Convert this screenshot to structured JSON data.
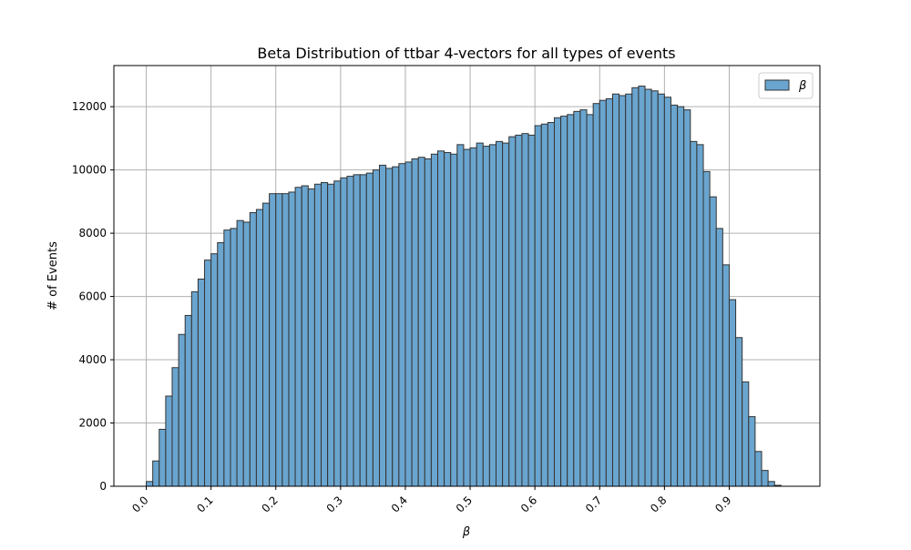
{
  "chart_data": {
    "type": "bar",
    "title": "Beta Distribution of ttbar 4-vectors for all types of events",
    "xlabel": "β",
    "ylabel": "# of Events",
    "xlim": [
      -0.05,
      1.04
    ],
    "ylim": [
      0,
      13300
    ],
    "xticks": [
      0.0,
      0.1,
      0.2,
      0.3,
      0.4,
      0.5,
      0.6,
      0.7,
      0.8,
      0.9
    ],
    "xtick_labels": [
      "0.0",
      "0.1",
      "0.2",
      "0.3",
      "0.4",
      "0.5",
      "0.6",
      "0.7",
      "0.8",
      "0.9"
    ],
    "yticks": [
      0,
      2000,
      4000,
      6000,
      8000,
      10000,
      12000
    ],
    "ytick_labels": [
      "0",
      "2000",
      "4000",
      "6000",
      "8000",
      "10000",
      "12000"
    ],
    "bin_start": 0.0,
    "bin_width": 0.01,
    "grid": true,
    "legend_position": "top-right",
    "bar_color": "#6aa5cf",
    "bar_edge_color": "#333333",
    "series": [
      {
        "name": "β",
        "values": [
          150,
          800,
          1800,
          2850,
          3750,
          4800,
          5400,
          6150,
          6550,
          7150,
          7350,
          7700,
          8100,
          8150,
          8400,
          8350,
          8650,
          8750,
          8950,
          9250,
          9250,
          9250,
          9300,
          9450,
          9500,
          9400,
          9550,
          9600,
          9550,
          9650,
          9750,
          9800,
          9850,
          9850,
          9900,
          10000,
          10150,
          10050,
          10100,
          10200,
          10250,
          10350,
          10400,
          10350,
          10500,
          10600,
          10550,
          10500,
          10800,
          10650,
          10700,
          10850,
          10750,
          10800,
          10900,
          10850,
          11050,
          11100,
          11150,
          11100,
          11400,
          11450,
          11500,
          11650,
          11700,
          11750,
          11850,
          11900,
          11750,
          12100,
          12200,
          12250,
          12400,
          12350,
          12400,
          12600,
          12650,
          12550,
          12500,
          12400,
          12300,
          12050,
          12000,
          11900,
          10900,
          10800,
          9950,
          9150,
          8150,
          7000,
          5900,
          4700,
          3300,
          2200,
          1100,
          500,
          150,
          30
        ]
      }
    ]
  }
}
